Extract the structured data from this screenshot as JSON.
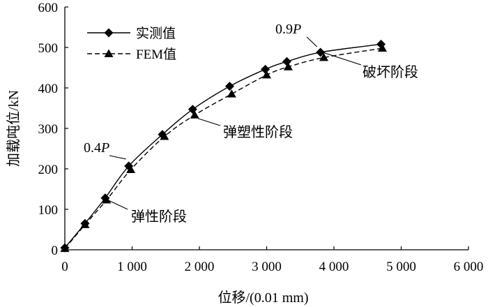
{
  "chart_data": {
    "type": "line",
    "xlabel": "位移/(0.01 mm)",
    "ylabel": "加载吨位/kN",
    "xlim": [
      0,
      6000
    ],
    "ylim": [
      0,
      600
    ],
    "x_ticks": [
      0,
      1000,
      2000,
      3000,
      4000,
      5000,
      6000
    ],
    "x_tick_labels": [
      "0",
      "1 000",
      "2 000",
      "3 000",
      "4 000",
      "5 000",
      "6 000"
    ],
    "y_ticks": [
      0,
      100,
      200,
      300,
      400,
      500,
      600
    ],
    "y_tick_labels": [
      "0",
      "100",
      "200",
      "300",
      "400",
      "500",
      "600"
    ],
    "legend_position": "top-left",
    "series": [
      {
        "name": "实测值",
        "line_style": "solid",
        "marker": "diamond",
        "x": [
          0,
          300,
          600,
          950,
          1450,
          1900,
          2450,
          2980,
          3300,
          3800,
          4700
        ],
        "y": [
          5,
          65,
          128,
          207,
          285,
          347,
          404,
          446,
          465,
          488,
          508
        ]
      },
      {
        "name": "FEM值",
        "line_style": "dashed",
        "marker": "triangle",
        "x": [
          0,
          300,
          620,
          980,
          1480,
          1930,
          2480,
          3000,
          3320,
          3850,
          4720
        ],
        "y": [
          3,
          62,
          123,
          198,
          280,
          333,
          385,
          432,
          452,
          475,
          498
        ]
      }
    ],
    "annotations": [
      {
        "text_main": "0.4",
        "text_italic": "P",
        "at": [
          950,
          207
        ]
      },
      {
        "text_main": "0.9",
        "text_italic": "P",
        "at": [
          3800,
          488
        ]
      },
      {
        "text": "弹性阶段",
        "at": [
          600,
          128
        ]
      },
      {
        "text": "弹塑性阶段",
        "at": [
          1930,
          333
        ]
      },
      {
        "text": "破坏阶段",
        "at": [
          4100,
          485
        ]
      }
    ]
  }
}
